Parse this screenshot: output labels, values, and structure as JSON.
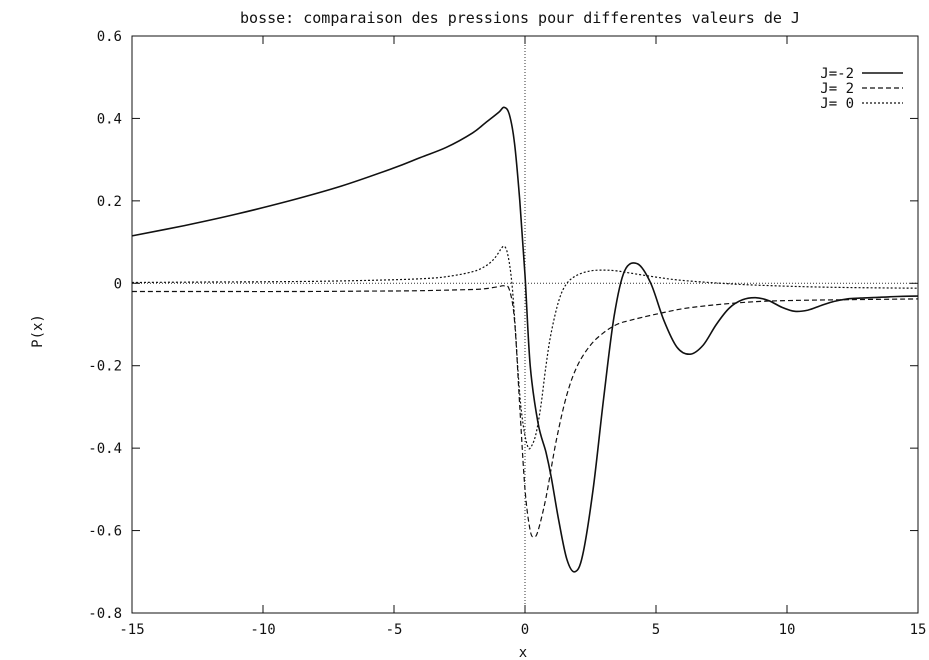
{
  "chart_data": {
    "type": "line",
    "title": "bosse: comparaison des pressions pour differentes valeurs de J",
    "xlabel": "x",
    "ylabel": "P(x)",
    "xlim": [
      -15,
      15
    ],
    "ylim": [
      -0.8,
      0.6
    ],
    "xticks": [
      "-15",
      "-10",
      "-5",
      "0",
      "5",
      "10",
      "15"
    ],
    "yticks": [
      "0.6",
      "0.4",
      "0.2",
      "0",
      "-0.2",
      "-0.4",
      "-0.6",
      "-0.8"
    ],
    "grid": false,
    "legend_position": "top-right",
    "reference_lines": [
      "x = 0 (dotted)",
      "y = 0 (dotted)"
    ],
    "series": [
      {
        "name": "J=-2",
        "style": "solid",
        "x": [
          -15,
          -13,
          -11,
          -9,
          -7,
          -5,
          -4,
          -3,
          -2,
          -1.5,
          -1,
          -0.8,
          -0.6,
          -0.4,
          -0.2,
          0,
          0.2,
          0.5,
          0.8,
          1.0,
          1.3,
          1.6,
          1.9,
          2.2,
          2.6,
          3.0,
          3.4,
          3.8,
          4.3,
          4.8,
          5.3,
          5.8,
          6.3,
          6.8,
          7.3,
          7.8,
          8.3,
          8.8,
          9.3,
          9.8,
          10.3,
          10.8,
          11.3,
          11.8,
          12.3,
          12.8,
          13.5,
          14.2,
          15
        ],
        "y": [
          0.115,
          0.14,
          0.168,
          0.2,
          0.236,
          0.28,
          0.305,
          0.33,
          0.365,
          0.39,
          0.415,
          0.427,
          0.41,
          0.34,
          0.2,
          0.02,
          -0.2,
          -0.34,
          -0.41,
          -0.47,
          -0.58,
          -0.67,
          -0.7,
          -0.66,
          -0.5,
          -0.28,
          -0.08,
          0.03,
          0.047,
          0.0,
          -0.09,
          -0.155,
          -0.172,
          -0.15,
          -0.1,
          -0.06,
          -0.04,
          -0.035,
          -0.042,
          -0.058,
          -0.068,
          -0.065,
          -0.054,
          -0.044,
          -0.038,
          -0.036,
          -0.034,
          -0.032,
          -0.031
        ]
      },
      {
        "name": "J= 2",
        "style": "dashed",
        "x": [
          -15,
          -12,
          -9,
          -6,
          -4,
          -2,
          -1.5,
          -1,
          -0.8,
          -0.6,
          -0.4,
          -0.2,
          0,
          0.2,
          0.35,
          0.5,
          0.8,
          1.2,
          1.6,
          2.0,
          2.5,
          3.0,
          3.5,
          4.0,
          5.0,
          6.0,
          7.0,
          8.0,
          9.0,
          10.0,
          12.0,
          15
        ],
        "y": [
          -0.02,
          -0.02,
          -0.02,
          -0.019,
          -0.018,
          -0.015,
          -0.013,
          -0.008,
          -0.006,
          -0.015,
          -0.09,
          -0.3,
          -0.5,
          -0.6,
          -0.615,
          -0.6,
          -0.52,
          -0.38,
          -0.27,
          -0.2,
          -0.15,
          -0.12,
          -0.1,
          -0.09,
          -0.075,
          -0.062,
          -0.054,
          -0.048,
          -0.044,
          -0.042,
          -0.04,
          -0.038
        ]
      },
      {
        "name": "J= 0",
        "style": "dotted",
        "x": [
          -15,
          -12,
          -9,
          -6,
          -4,
          -3,
          -2,
          -1.5,
          -1.2,
          -1,
          -0.9,
          -0.8,
          -0.7,
          -0.6,
          -0.5,
          -0.4,
          -0.3,
          -0.2,
          -0.1,
          0,
          0.1,
          0.2,
          0.4,
          0.6,
          0.8,
          1.0,
          1.3,
          1.6,
          2.0,
          2.5,
          3.0,
          3.5,
          4.0,
          5.0,
          6.0,
          8.0,
          10.0,
          12.0,
          15
        ],
        "y": [
          0.002,
          0.003,
          0.004,
          0.007,
          0.011,
          0.016,
          0.028,
          0.042,
          0.058,
          0.075,
          0.085,
          0.09,
          0.08,
          0.05,
          0.0,
          -0.08,
          -0.18,
          -0.27,
          -0.33,
          -0.37,
          -0.395,
          -0.4,
          -0.37,
          -0.3,
          -0.2,
          -0.12,
          -0.04,
          0.0,
          0.02,
          0.03,
          0.032,
          0.03,
          0.025,
          0.015,
          0.007,
          -0.002,
          -0.007,
          -0.01,
          -0.012
        ]
      }
    ]
  }
}
